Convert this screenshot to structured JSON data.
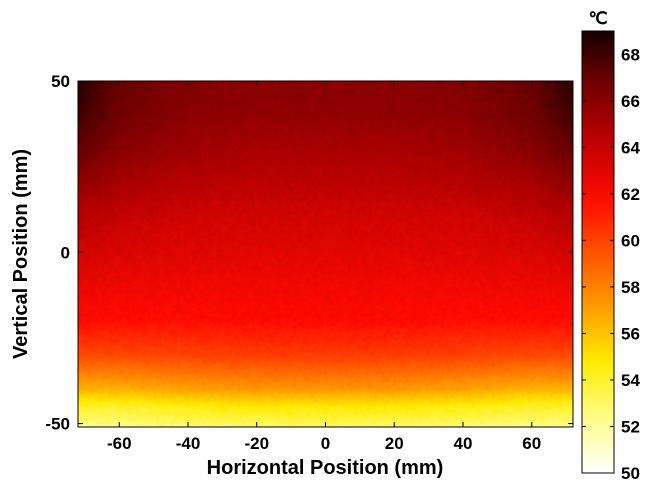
{
  "chart_data": {
    "type": "heatmap",
    "title": "",
    "xlabel": "Horizontal Position (mm)",
    "ylabel": "Vertical Position (mm)",
    "xlim": [
      -72,
      72
    ],
    "ylim": [
      -51,
      50
    ],
    "x_ticks": [
      "-60",
      "-40",
      "-20",
      "0",
      "20",
      "40",
      "60"
    ],
    "y_ticks": [
      "50",
      "0",
      "-50"
    ],
    "colormap": "hot (reversed)",
    "colorbar": {
      "unit": "℃",
      "range": [
        50,
        69
      ],
      "ticks": [
        "68",
        "66",
        "64",
        "62",
        "60",
        "58",
        "56",
        "54",
        "52",
        "50"
      ],
      "position": "right"
    },
    "x": [
      -72,
      -60,
      -40,
      -20,
      0,
      20,
      40,
      60,
      72
    ],
    "y": [
      50,
      40,
      30,
      20,
      10,
      0,
      -10,
      -20,
      -30,
      -40,
      -45,
      -51
    ],
    "z": [
      [
        68.5,
        67.0,
        66.2,
        66.0,
        66.0,
        66.0,
        66.2,
        67.0,
        68.5
      ],
      [
        68.0,
        66.7,
        65.9,
        65.7,
        65.7,
        65.7,
        65.9,
        66.7,
        68.0
      ],
      [
        67.0,
        66.0,
        65.3,
        65.0,
        65.0,
        65.0,
        65.3,
        66.0,
        67.0
      ],
      [
        65.8,
        65.0,
        64.5,
        64.3,
        64.3,
        64.3,
        64.5,
        65.0,
        65.8
      ],
      [
        64.5,
        64.0,
        63.6,
        63.5,
        63.5,
        63.5,
        63.6,
        64.0,
        64.5
      ],
      [
        63.5,
        63.2,
        63.0,
        62.9,
        62.9,
        62.9,
        63.0,
        63.2,
        63.5
      ],
      [
        62.5,
        62.4,
        62.3,
        62.3,
        62.3,
        62.3,
        62.3,
        62.4,
        62.5
      ],
      [
        61.8,
        61.7,
        61.7,
        61.8,
        61.8,
        61.8,
        61.7,
        61.7,
        61.8
      ],
      [
        59.8,
        59.8,
        60.0,
        60.2,
        60.2,
        60.2,
        60.0,
        59.8,
        59.8
      ],
      [
        56.5,
        56.5,
        57.0,
        57.3,
        57.3,
        57.3,
        57.0,
        56.5,
        56.5
      ],
      [
        54.0,
        54.0,
        54.5,
        54.8,
        54.8,
        54.8,
        54.5,
        54.0,
        54.0
      ],
      [
        52.5,
        52.5,
        52.8,
        53.0,
        53.0,
        53.0,
        52.8,
        52.5,
        52.5
      ]
    ]
  }
}
